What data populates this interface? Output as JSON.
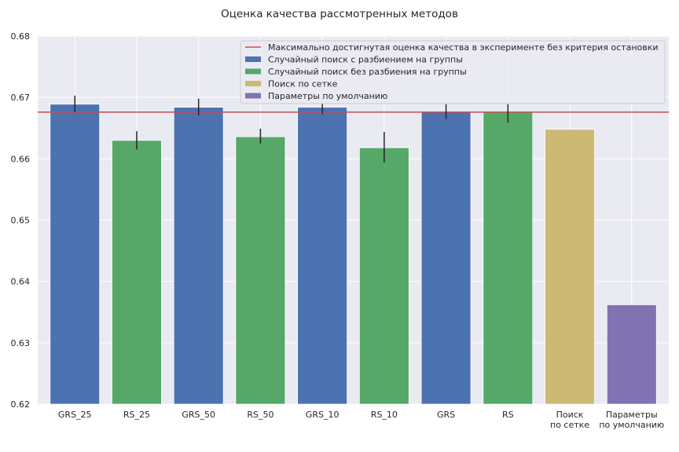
{
  "chart_data": {
    "type": "bar",
    "title": "Оценка качества рассмотренных методов",
    "xlabel": "",
    "ylabel": "",
    "ylim": [
      0.62,
      0.68
    ],
    "yticks": [
      "0.62",
      "0.63",
      "0.64",
      "0.65",
      "0.66",
      "0.67",
      "0.68"
    ],
    "grid": true,
    "legend_position": "top-right",
    "reference_line": {
      "label": "Максимально достигнутая оценка качества в эксперименте без критерия остановки",
      "value": 0.6676,
      "color": "#c44e52"
    },
    "legend": [
      {
        "label": "Максимально достигнутая оценка качества в эксперименте без критерия остановки",
        "kind": "line",
        "color": "#c44e52"
      },
      {
        "label": "Случайный поиск с разбиением на группы",
        "kind": "patch",
        "color": "#4c72b0"
      },
      {
        "label": "Случайный поиск без разбиения на группы",
        "kind": "patch",
        "color": "#55a868"
      },
      {
        "label": "Поиск по сетке",
        "kind": "patch",
        "color": "#ccb974"
      },
      {
        "label": "Параметры по умолчанию",
        "kind": "patch",
        "color": "#8172b2"
      }
    ],
    "bars": [
      {
        "category": [
          "GRS_25"
        ],
        "value": 0.6689,
        "err_low": 0.6676,
        "err_high": 0.6703,
        "color": "#4c72b0"
      },
      {
        "category": [
          "RS_25"
        ],
        "value": 0.663,
        "err_low": 0.6615,
        "err_high": 0.6645,
        "color": "#55a868"
      },
      {
        "category": [
          "GRS_50"
        ],
        "value": 0.6684,
        "err_low": 0.6671,
        "err_high": 0.6698,
        "color": "#4c72b0"
      },
      {
        "category": [
          "RS_50"
        ],
        "value": 0.6636,
        "err_low": 0.6625,
        "err_high": 0.6649,
        "color": "#55a868"
      },
      {
        "category": [
          "GRS_10"
        ],
        "value": 0.6684,
        "err_low": 0.6673,
        "err_high": 0.669,
        "color": "#4c72b0"
      },
      {
        "category": [
          "RS_10"
        ],
        "value": 0.6618,
        "err_low": 0.6594,
        "err_high": 0.6644,
        "color": "#55a868"
      },
      {
        "category": [
          "GRS"
        ],
        "value": 0.6676,
        "err_low": 0.6665,
        "err_high": 0.6689,
        "color": "#4c72b0"
      },
      {
        "category": [
          "RS"
        ],
        "value": 0.6676,
        "err_low": 0.6659,
        "err_high": 0.6689,
        "color": "#55a868"
      },
      {
        "category": [
          "Поиск",
          "по сетке"
        ],
        "value": 0.6648,
        "err_low": null,
        "err_high": null,
        "color": "#ccb974"
      },
      {
        "category": [
          "Параметры",
          "по умолчанию"
        ],
        "value": 0.6362,
        "err_low": null,
        "err_high": null,
        "color": "#8172b2"
      }
    ],
    "colors": {
      "background": "#eaeaf2",
      "grid": "#ffffff",
      "errorbar": "#262626"
    }
  }
}
